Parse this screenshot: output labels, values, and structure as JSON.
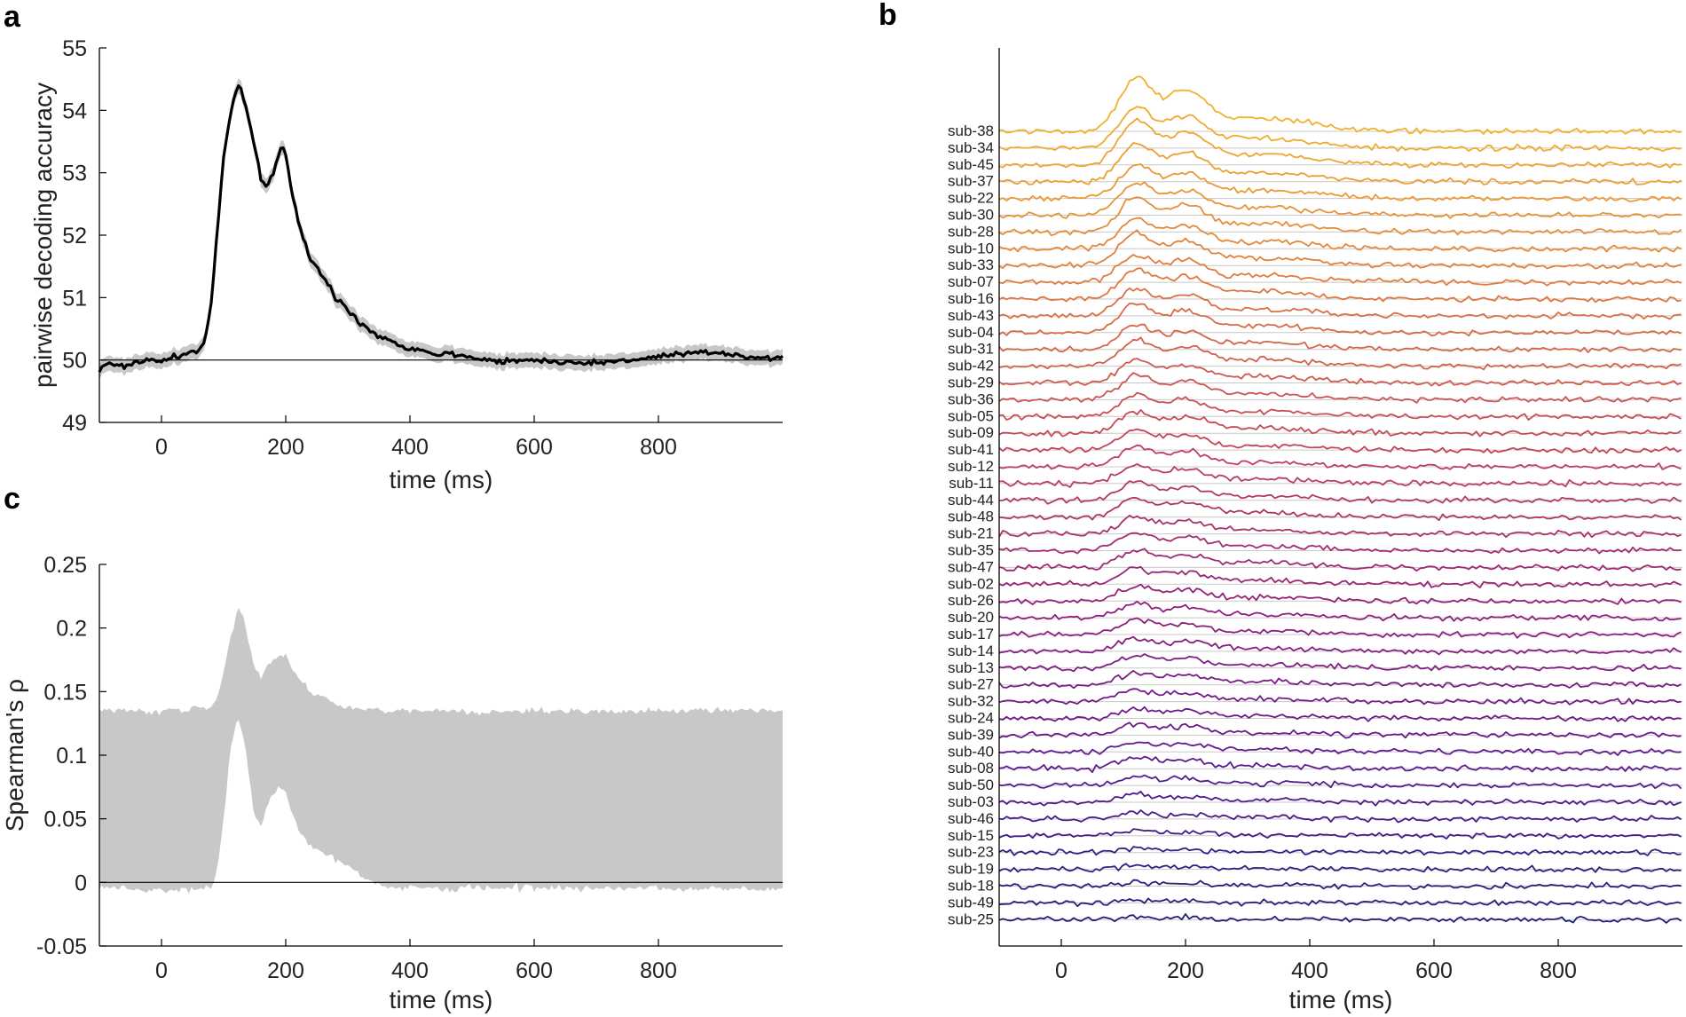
{
  "panel_letters": {
    "a": "a",
    "b": "b",
    "c": "c"
  },
  "chart_data": [
    {
      "panel": "a",
      "type": "line",
      "title": "",
      "xlabel": "time (ms)",
      "ylabel": "pairwise decoding accuracy",
      "xlim": [
        -100,
        1000
      ],
      "ylim": [
        49,
        55
      ],
      "xticks": [
        0,
        200,
        400,
        600,
        800
      ],
      "yticks": [
        49,
        50,
        51,
        52,
        53,
        54,
        55
      ],
      "chance_line": 50,
      "grid": false,
      "legend": "none",
      "colors": {
        "line": "#000000",
        "band": "#c8c8c8"
      },
      "series": [
        {
          "x": [
            -100,
            -80,
            -60,
            -40,
            -20,
            0,
            20,
            40,
            60,
            70,
            80,
            90,
            100,
            110,
            120,
            125,
            130,
            140,
            150,
            160,
            170,
            180,
            190,
            195,
            200,
            210,
            220,
            230,
            240,
            250,
            260,
            270,
            280,
            300,
            320,
            340,
            360,
            380,
            400,
            420,
            440,
            460,
            480,
            500,
            520,
            540,
            560,
            580,
            600,
            650,
            700,
            750,
            800,
            850,
            900,
            950,
            1000
          ],
          "y": [
            49.85,
            49.95,
            49.9,
            49.97,
            50.0,
            49.98,
            50.05,
            50.1,
            50.15,
            50.3,
            50.9,
            52.1,
            53.2,
            53.9,
            54.3,
            54.4,
            54.3,
            53.9,
            53.4,
            52.9,
            52.8,
            53.0,
            53.35,
            53.4,
            53.3,
            52.7,
            52.2,
            51.9,
            51.6,
            51.5,
            51.3,
            51.2,
            51.0,
            50.8,
            50.6,
            50.45,
            50.35,
            50.25,
            50.2,
            50.15,
            50.1,
            50.1,
            50.08,
            50.05,
            50.0,
            49.98,
            50.0,
            49.98,
            50.0,
            49.97,
            49.95,
            50.0,
            50.05,
            50.1,
            50.12,
            50.05,
            50.02
          ]
        }
      ]
    },
    {
      "panel": "b",
      "type": "line",
      "title": "",
      "xlabel": "time (ms)",
      "ylabel": "",
      "xlim": [
        -100,
        1000
      ],
      "xticks": [
        0,
        200,
        400,
        600,
        800
      ],
      "grid": true,
      "legend": "none",
      "colormap": [
        "#f2b02d",
        "#e07a3e",
        "#c4455a",
        "#95207a",
        "#5f1a8f",
        "#1f1f7a"
      ],
      "peaks_ms": [
        120,
        200
      ],
      "subjects": [
        "sub-38",
        "sub-34",
        "sub-45",
        "sub-37",
        "sub-22",
        "sub-30",
        "sub-28",
        "sub-10",
        "sub-33",
        "sub-07",
        "sub-16",
        "sub-43",
        "sub-04",
        "sub-31",
        "sub-42",
        "sub-29",
        "sub-36",
        "sub-05",
        "sub-09",
        "sub-41",
        "sub-12",
        "sub-11",
        "sub-44",
        "sub-48",
        "sub-21",
        "sub-35",
        "sub-47",
        "sub-02",
        "sub-26",
        "sub-20",
        "sub-17",
        "sub-14",
        "sub-13",
        "sub-27",
        "sub-32",
        "sub-24",
        "sub-39",
        "sub-40",
        "sub-08",
        "sub-50",
        "sub-03",
        "sub-46",
        "sub-15",
        "sub-23",
        "sub-19",
        "sub-18",
        "sub-49",
        "sub-25"
      ],
      "peak_amplitudes": [
        4.2,
        3.2,
        3.4,
        2.9,
        2.6,
        2.5,
        2.7,
        2.4,
        2.5,
        2.2,
        2.3,
        2.1,
        2.2,
        1.9,
        2.0,
        1.8,
        1.9,
        1.7,
        1.7,
        1.5,
        1.6,
        1.5,
        1.4,
        1.5,
        1.3,
        1.4,
        1.3,
        1.2,
        1.2,
        1.1,
        1.1,
        1.0,
        1.0,
        1.0,
        0.9,
        0.8,
        0.9,
        0.8,
        0.9,
        0.7,
        0.6,
        0.5,
        0.4,
        0.3,
        0.3,
        0.3,
        0.2,
        0.2
      ]
    },
    {
      "panel": "c",
      "type": "area",
      "title": "",
      "xlabel": "time (ms)",
      "ylabel": "Spearman's ρ",
      "xlim": [
        -100,
        1000
      ],
      "ylim": [
        -0.05,
        0.25
      ],
      "xticks": [
        0,
        200,
        400,
        600,
        800
      ],
      "yticks": [
        -0.05,
        0,
        0.05,
        0.1,
        0.15,
        0.2,
        0.25
      ],
      "ytick_labels": [
        "-0.05",
        "0",
        "0.05",
        "0.1",
        "0.15",
        "0.2",
        "0.25"
      ],
      "zero_line": 0,
      "grid": false,
      "legend": "none",
      "colors": {
        "band": "#c8c8c8"
      },
      "x": [
        -100,
        -60,
        -20,
        0,
        40,
        60,
        80,
        90,
        100,
        110,
        120,
        125,
        130,
        140,
        150,
        160,
        170,
        180,
        190,
        200,
        210,
        220,
        240,
        260,
        280,
        300,
        320,
        340,
        360,
        400,
        500,
        600,
        700,
        800,
        900,
        1000
      ],
      "upper": [
        0.135,
        0.136,
        0.134,
        0.135,
        0.136,
        0.137,
        0.138,
        0.145,
        0.165,
        0.19,
        0.21,
        0.215,
        0.21,
        0.19,
        0.17,
        0.16,
        0.17,
        0.175,
        0.18,
        0.178,
        0.17,
        0.16,
        0.15,
        0.145,
        0.14,
        0.138,
        0.137,
        0.136,
        0.135,
        0.135,
        0.134,
        0.135,
        0.134,
        0.135,
        0.136,
        0.135
      ],
      "lower": [
        -0.005,
        -0.005,
        -0.006,
        -0.005,
        -0.006,
        -0.005,
        -0.004,
        0.01,
        0.05,
        0.1,
        0.125,
        0.128,
        0.12,
        0.09,
        0.05,
        0.045,
        0.06,
        0.07,
        0.075,
        0.07,
        0.055,
        0.04,
        0.03,
        0.025,
        0.018,
        0.012,
        0.006,
        0.0,
        -0.003,
        -0.004,
        -0.005,
        -0.004,
        -0.005,
        -0.004,
        -0.005,
        -0.004
      ]
    }
  ]
}
